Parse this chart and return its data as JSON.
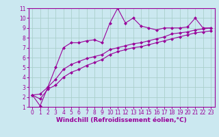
{
  "bg_color": "#cbe8f0",
  "line_color": "#990099",
  "grid_color": "#aacfcc",
  "xlabel": "Windchill (Refroidissement éolien,°C)",
  "xlim": [
    -0.5,
    23.5
  ],
  "ylim": [
    1,
    11
  ],
  "xticks": [
    0,
    1,
    2,
    3,
    4,
    5,
    6,
    7,
    8,
    9,
    10,
    11,
    12,
    13,
    14,
    15,
    16,
    17,
    18,
    19,
    20,
    21,
    22,
    23
  ],
  "yticks": [
    1,
    2,
    3,
    4,
    5,
    6,
    7,
    8,
    9,
    10,
    11
  ],
  "line1_x": [
    0,
    1,
    2,
    3,
    4,
    5,
    6,
    7,
    8,
    9,
    10,
    11,
    12,
    13,
    14,
    15,
    16,
    17,
    18,
    19,
    20,
    21,
    22,
    23
  ],
  "line1_y": [
    2.2,
    1.1,
    3.0,
    5.0,
    7.0,
    7.5,
    7.5,
    7.7,
    7.8,
    7.5,
    9.5,
    11.0,
    9.5,
    10.0,
    9.2,
    9.0,
    8.8,
    9.0,
    9.0,
    9.0,
    9.1,
    10.0,
    9.0,
    9.0
  ],
  "line2_x": [
    0,
    1,
    2,
    3,
    4,
    5,
    6,
    7,
    8,
    9,
    10,
    11,
    12,
    13,
    14,
    15,
    16,
    17,
    18,
    19,
    20,
    21,
    22,
    23
  ],
  "line2_y": [
    2.2,
    1.8,
    2.8,
    3.2,
    4.0,
    4.5,
    4.8,
    5.2,
    5.5,
    5.8,
    6.3,
    6.6,
    6.8,
    7.0,
    7.1,
    7.3,
    7.5,
    7.7,
    7.9,
    8.1,
    8.3,
    8.5,
    8.6,
    8.7
  ],
  "line3_x": [
    0,
    1,
    2,
    3,
    4,
    5,
    6,
    7,
    8,
    9,
    10,
    11,
    12,
    13,
    14,
    15,
    16,
    17,
    18,
    19,
    20,
    21,
    22,
    23
  ],
  "line3_y": [
    2.2,
    2.3,
    3.0,
    3.8,
    4.8,
    5.3,
    5.6,
    5.9,
    6.1,
    6.3,
    6.8,
    7.0,
    7.2,
    7.4,
    7.5,
    7.7,
    7.9,
    8.1,
    8.4,
    8.5,
    8.6,
    8.8,
    8.9,
    9.0
  ],
  "marker": "D",
  "markersize": 2.0,
  "linewidth": 0.8,
  "xlabel_fontsize": 6.5,
  "tick_fontsize": 5.5
}
